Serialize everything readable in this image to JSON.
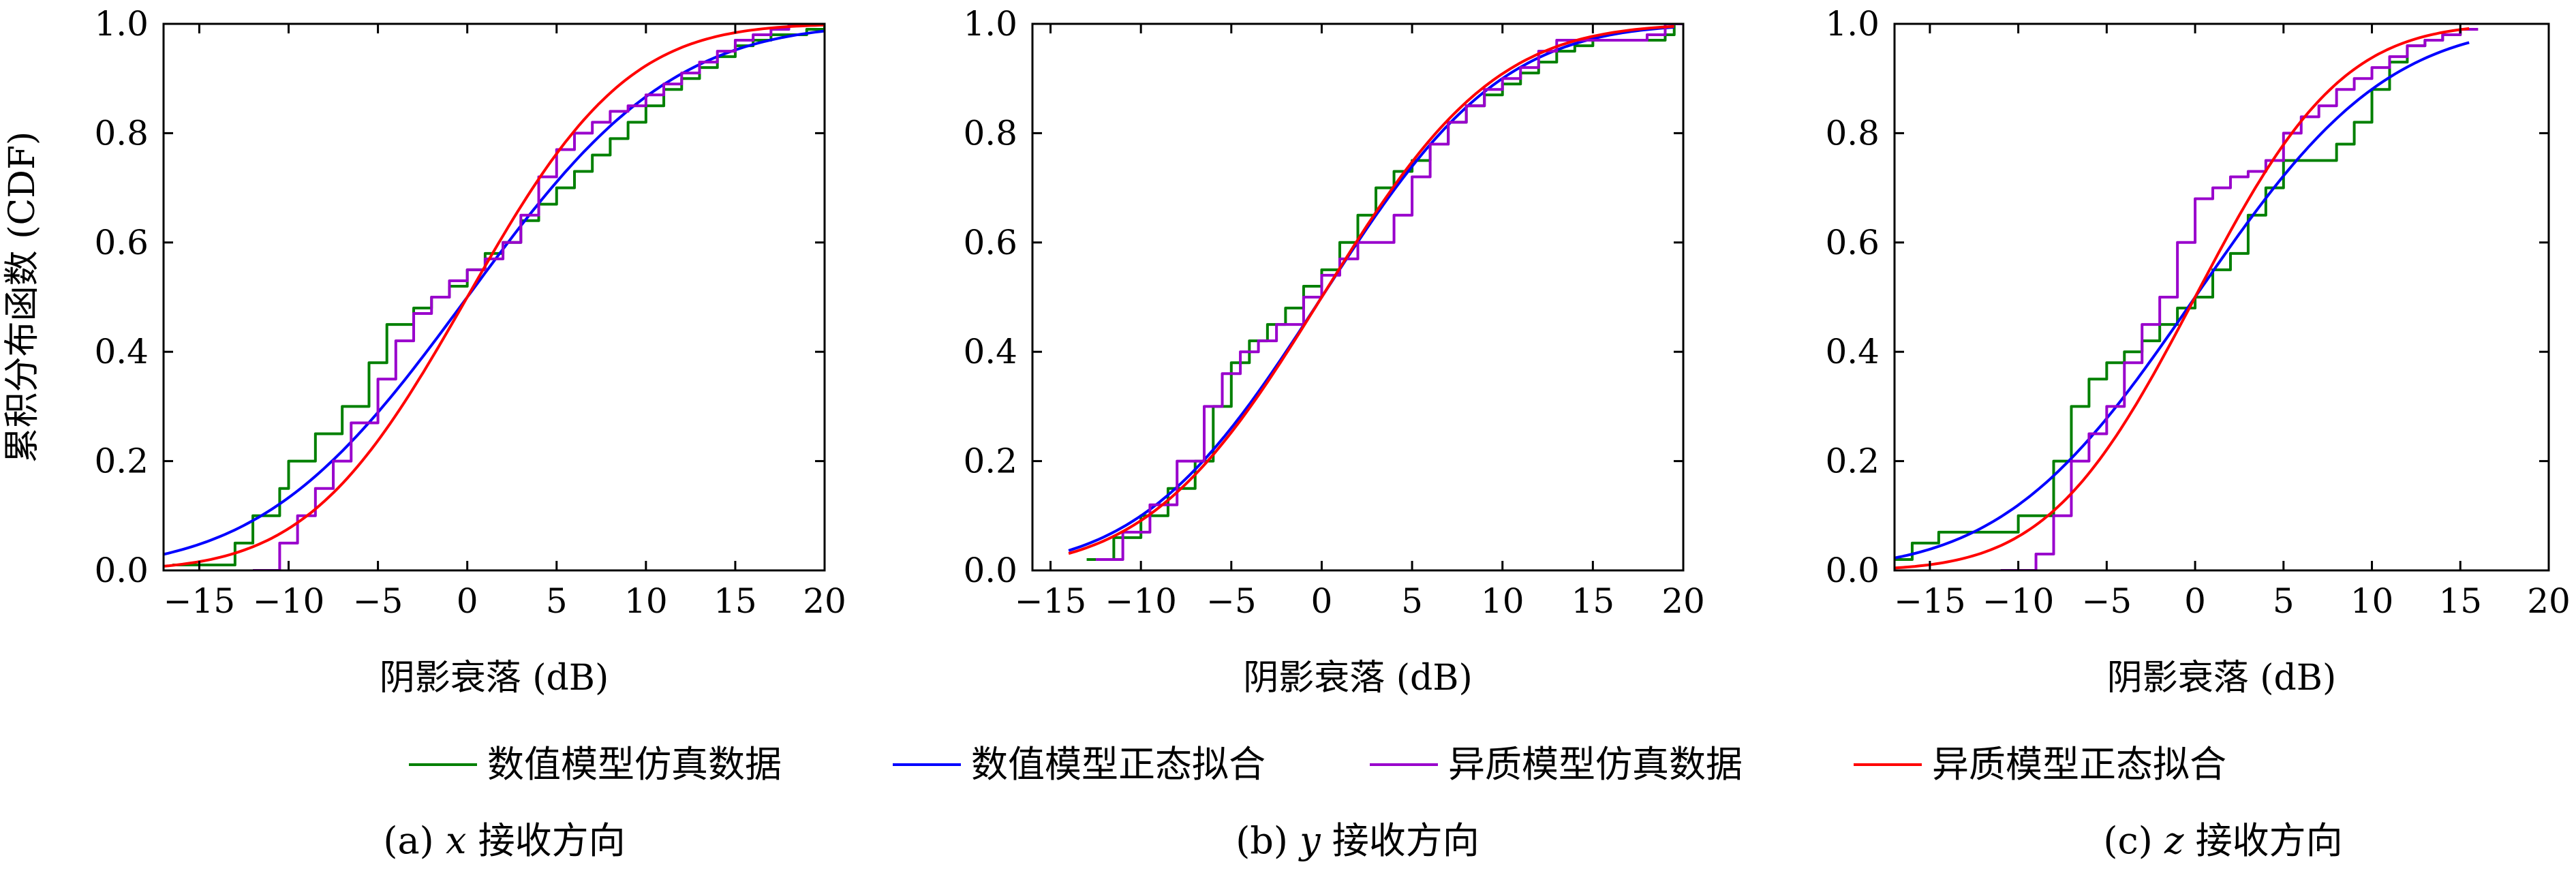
{
  "figure": {
    "legend": [
      {
        "label": "数值模型仿真数据",
        "color": "#008000"
      },
      {
        "label": "数值模型正态拟合",
        "color": "#0000ff"
      },
      {
        "label": "异质模型仿真数据",
        "color": "#9900cc"
      },
      {
        "label": "异质模型正态拟合",
        "color": "#ff0000"
      }
    ]
  },
  "chart_data": [
    {
      "type": "line",
      "caption": "(a) x 接收方向",
      "caption_prefix": "(a)",
      "caption_var": "x",
      "caption_suffix": "接收方向",
      "xlabel": "阴影衰落 (dB)",
      "ylabel": "累积分布函数 (CDF)",
      "xlim": [
        -17,
        20
      ],
      "ylim": [
        0,
        1
      ],
      "xticks": [
        "−15",
        "−10",
        "−5",
        "0",
        "5",
        "10",
        "15",
        "20"
      ],
      "xtick_values": [
        -15,
        -10,
        -5,
        0,
        5,
        10,
        15,
        20
      ],
      "yticks": [
        "0.0",
        "0.2",
        "0.4",
        "0.6",
        "0.8",
        "1.0"
      ],
      "ytick_values": [
        0,
        0.2,
        0.4,
        0.6,
        0.8,
        1.0
      ],
      "series": [
        {
          "name": "数值模型仿真数据",
          "kind": "step",
          "color": "#008000",
          "x": [
            -16.5,
            -13,
            -12,
            -10.5,
            -10,
            -8.5,
            -7,
            -5.5,
            -4.5,
            -3,
            -2,
            -1,
            0,
            1,
            2,
            3,
            4,
            5,
            6,
            7,
            8,
            9,
            10,
            11,
            12,
            13,
            14,
            15,
            16,
            17,
            18,
            19,
            20
          ],
          "y": [
            0.01,
            0.05,
            0.1,
            0.15,
            0.2,
            0.25,
            0.3,
            0.38,
            0.45,
            0.48,
            0.5,
            0.52,
            0.55,
            0.58,
            0.6,
            0.64,
            0.67,
            0.7,
            0.73,
            0.76,
            0.79,
            0.82,
            0.85,
            0.88,
            0.9,
            0.92,
            0.94,
            0.96,
            0.97,
            0.98,
            0.98,
            0.99,
            1.0
          ]
        },
        {
          "name": "数值模型正态拟合",
          "kind": "normal",
          "color": "#0000ff",
          "mu": 0,
          "sigma": 9.0,
          "xmin": -17,
          "xmax": 20
        },
        {
          "name": "异质模型仿真数据",
          "kind": "step",
          "color": "#9900cc",
          "x": [
            -12,
            -10.5,
            -9.5,
            -8.5,
            -7.5,
            -6.5,
            -5,
            -4,
            -3,
            -2,
            -1,
            0,
            1,
            2,
            3,
            4,
            5,
            6,
            7,
            8,
            9,
            10,
            11,
            12,
            13,
            14,
            15,
            16,
            17,
            18,
            19,
            20
          ],
          "y": [
            0.0,
            0.05,
            0.1,
            0.15,
            0.2,
            0.27,
            0.35,
            0.42,
            0.47,
            0.5,
            0.53,
            0.55,
            0.57,
            0.6,
            0.65,
            0.72,
            0.77,
            0.8,
            0.82,
            0.84,
            0.85,
            0.87,
            0.89,
            0.91,
            0.93,
            0.95,
            0.97,
            0.98,
            0.99,
            1.0,
            1.0,
            1.0
          ]
        },
        {
          "name": "异质模型正态拟合",
          "kind": "normal",
          "color": "#ff0000",
          "mu": 0,
          "sigma": 7.0,
          "xmin": -17,
          "xmax": 20
        }
      ]
    },
    {
      "type": "line",
      "caption": "(b) y 接收方向",
      "caption_prefix": "(b)",
      "caption_var": "y",
      "caption_suffix": "接收方向",
      "xlabel": "阴影衰落 (dB)",
      "ylabel": "",
      "xlim": [
        -16,
        20
      ],
      "ylim": [
        0,
        1
      ],
      "xticks": [
        "−15",
        "−10",
        "−5",
        "0",
        "5",
        "10",
        "15",
        "20"
      ],
      "xtick_values": [
        -15,
        -10,
        -5,
        0,
        5,
        10,
        15,
        20
      ],
      "yticks": [
        "0.0",
        "0.2",
        "0.4",
        "0.6",
        "0.8",
        "1.0"
      ],
      "ytick_values": [
        0,
        0.2,
        0.4,
        0.6,
        0.8,
        1.0
      ],
      "series": [
        {
          "name": "数值模型仿真数据",
          "kind": "step",
          "color": "#008000",
          "x": [
            -13,
            -11.5,
            -10,
            -8.5,
            -7,
            -6,
            -5,
            -4,
            -3,
            -2,
            -1,
            0,
            1,
            2,
            3,
            4,
            5,
            6,
            7,
            8,
            9,
            10,
            11,
            12,
            13,
            14,
            15,
            16,
            17,
            18,
            19,
            19.5
          ],
          "y": [
            0.02,
            0.06,
            0.1,
            0.15,
            0.2,
            0.3,
            0.38,
            0.42,
            0.45,
            0.48,
            0.52,
            0.55,
            0.6,
            0.65,
            0.7,
            0.73,
            0.75,
            0.78,
            0.82,
            0.85,
            0.87,
            0.89,
            0.91,
            0.93,
            0.95,
            0.96,
            0.97,
            0.97,
            0.97,
            0.97,
            0.98,
            1.0
          ]
        },
        {
          "name": "数值模型正态拟合",
          "kind": "normal",
          "color": "#0000ff",
          "mu": 0,
          "sigma": 7.8,
          "xmin": -14,
          "xmax": 19.5
        },
        {
          "name": "异质模型仿真数据",
          "kind": "step",
          "color": "#9900cc",
          "x": [
            -12.5,
            -11,
            -9.5,
            -8,
            -6.5,
            -5.5,
            -4.5,
            -3.5,
            -2.5,
            -1,
            0,
            1,
            2,
            3,
            4,
            5,
            6,
            7,
            8,
            9,
            10,
            11,
            12,
            13,
            14,
            15,
            16,
            17,
            18,
            19
          ],
          "y": [
            0.02,
            0.07,
            0.12,
            0.2,
            0.3,
            0.36,
            0.4,
            0.42,
            0.45,
            0.5,
            0.54,
            0.57,
            0.6,
            0.6,
            0.65,
            0.72,
            0.78,
            0.82,
            0.85,
            0.88,
            0.9,
            0.92,
            0.95,
            0.97,
            0.97,
            0.97,
            0.97,
            0.97,
            0.98,
            1.0
          ]
        },
        {
          "name": "异质模型正态拟合",
          "kind": "normal",
          "color": "#ff0000",
          "mu": 0,
          "sigma": 7.5,
          "xmin": -14,
          "xmax": 19.5
        }
      ]
    },
    {
      "type": "line",
      "caption": "(c) z 接收方向",
      "caption_prefix": "(c)",
      "caption_var": "z",
      "caption_suffix": "接收方向",
      "xlabel": "阴影衰落 (dB)",
      "ylabel": "",
      "xlim": [
        -17,
        20
      ],
      "ylim": [
        0,
        1
      ],
      "xticks": [
        "−15",
        "−10",
        "−5",
        "0",
        "5",
        "10",
        "15",
        "20"
      ],
      "xtick_values": [
        -15,
        -10,
        -5,
        0,
        5,
        10,
        15,
        20
      ],
      "yticks": [
        "0.0",
        "0.2",
        "0.4",
        "0.6",
        "0.8",
        "1.0"
      ],
      "ytick_values": [
        0,
        0.2,
        0.4,
        0.6,
        0.8,
        1.0
      ],
      "series": [
        {
          "name": "数值模型仿真数据",
          "kind": "step",
          "color": "#008000",
          "x": [
            -17,
            -16,
            -14.5,
            -10,
            -8,
            -7,
            -6,
            -5,
            -4,
            -3,
            -2,
            -1,
            0,
            1,
            2,
            3,
            4,
            5,
            6,
            7,
            8,
            9,
            10,
            11,
            12,
            13,
            14,
            15
          ],
          "y": [
            0.02,
            0.05,
            0.07,
            0.1,
            0.2,
            0.3,
            0.35,
            0.38,
            0.4,
            0.42,
            0.45,
            0.48,
            0.5,
            0.55,
            0.58,
            0.65,
            0.7,
            0.75,
            0.75,
            0.75,
            0.78,
            0.82,
            0.88,
            0.93,
            0.96,
            0.97,
            0.98,
            0.99
          ]
        },
        {
          "name": "数值模型正态拟合",
          "kind": "normal",
          "color": "#0000ff",
          "mu": 0,
          "sigma": 8.5,
          "xmin": -17,
          "xmax": 15.5
        },
        {
          "name": "异质模型仿真数据",
          "kind": "step",
          "color": "#9900cc",
          "x": [
            -11,
            -9,
            -8,
            -7,
            -6,
            -5,
            -4,
            -3,
            -2,
            -1,
            0,
            1,
            2,
            3,
            4,
            5,
            6,
            7,
            8,
            9,
            10,
            11,
            12,
            13,
            14,
            15
          ],
          "y": [
            0.0,
            0.03,
            0.1,
            0.2,
            0.25,
            0.3,
            0.38,
            0.45,
            0.5,
            0.6,
            0.68,
            0.7,
            0.72,
            0.73,
            0.75,
            0.8,
            0.83,
            0.85,
            0.88,
            0.9,
            0.92,
            0.94,
            0.96,
            0.97,
            0.98,
            0.99
          ]
        },
        {
          "name": "异质模型正态拟合",
          "kind": "normal",
          "color": "#ff0000",
          "mu": 0,
          "sigma": 6.5,
          "xmin": -17,
          "xmax": 15.5
        }
      ]
    }
  ]
}
